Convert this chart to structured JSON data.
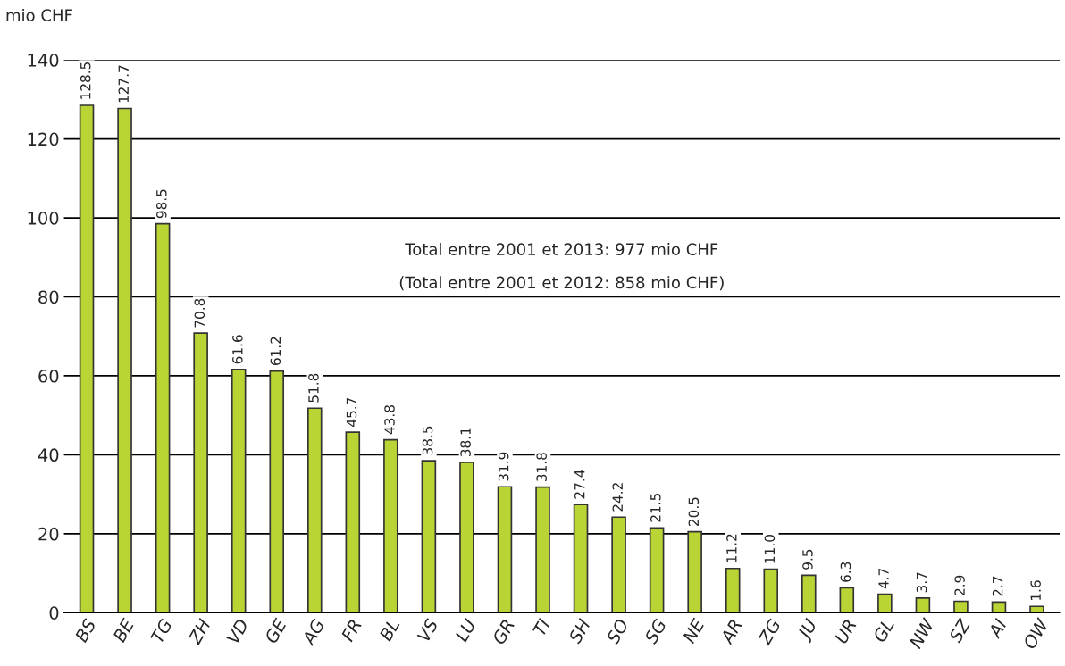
{
  "chart_data": {
    "type": "bar",
    "ylabel": "mio CHF",
    "categories": [
      "BS",
      "BE",
      "TG",
      "ZH",
      "VD",
      "GE",
      "AG",
      "FR",
      "BL",
      "VS",
      "LU",
      "GR",
      "TI",
      "SH",
      "SO",
      "SG",
      "NE",
      "AR",
      "ZG",
      "JU",
      "UR",
      "GL",
      "NW",
      "SZ",
      "AI",
      "OW"
    ],
    "values": [
      128.5,
      127.7,
      98.5,
      70.8,
      61.6,
      61.2,
      51.8,
      45.7,
      43.8,
      38.5,
      38.1,
      31.9,
      31.8,
      27.4,
      24.2,
      21.5,
      20.5,
      11.2,
      11.0,
      9.5,
      6.3,
      4.7,
      3.7,
      2.9,
      2.7,
      1.6
    ],
    "value_labels": [
      "128.5",
      "127.7",
      "98.5",
      "70.8",
      "61.6",
      "61.2",
      "51.8",
      "45.7",
      "43.8",
      "38.5",
      "38.1",
      "31.9",
      "31.8",
      "27.4",
      "24.2",
      "21.5",
      "20.5",
      "11.2",
      "11.0",
      "9.5",
      "6.3",
      "4.7",
      "3.7",
      "2.9",
      "2.7",
      "1.6"
    ],
    "color": "#b8d435",
    "ylim": [
      0,
      140
    ],
    "yticks": [
      0,
      20,
      40,
      60,
      80,
      100,
      120,
      140
    ],
    "grid": "y",
    "annotations": [
      "Total entre 2001 et 2013: 977 mio CHF",
      "(Total entre 2001 et 2012: 858 mio CHF)"
    ]
  }
}
